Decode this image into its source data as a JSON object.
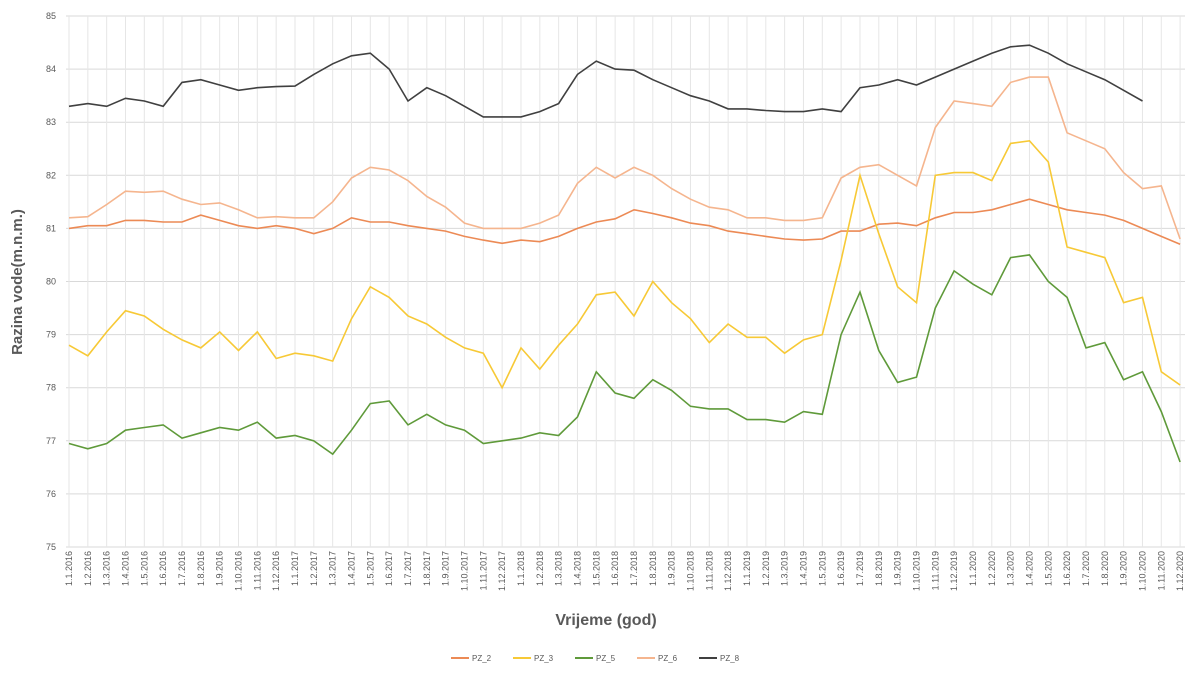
{
  "chart_data": {
    "type": "line",
    "y_label": "Razina vode(m.n.m.)",
    "x_label": "Vrijeme (god)",
    "categories": [
      "1.1.2016",
      "1.2.2016",
      "1.3.2016",
      "1.4.2016",
      "1.5.2016",
      "1.6.2016",
      "1.7.2016",
      "1.8.2016",
      "1.9.2016",
      "1.10.2016",
      "1.11.2016",
      "1.12.2016",
      "1.1.2017",
      "1.2.2017",
      "1.3.2017",
      "1.4.2017",
      "1.5.2017",
      "1.6.2017",
      "1.7.2017",
      "1.8.2017",
      "1.9.2017",
      "1.10.2017",
      "1.11.2017",
      "1.12.2017",
      "1.1.2018",
      "1.2.2018",
      "1.3.2018",
      "1.4.2018",
      "1.5.2018",
      "1.6.2018",
      "1.7.2018",
      "1.8.2018",
      "1.9.2018",
      "1.10.2018",
      "1.11.2018",
      "1.12.2018",
      "1.1.2019",
      "1.2.2019",
      "1.3.2019",
      "1.4.2019",
      "1.5.2019",
      "1.6.2019",
      "1.7.2019",
      "1.8.2019",
      "1.9.2019",
      "1.10.2019",
      "1.11.2019",
      "1.12.2019",
      "1.1.2020",
      "1.2.2020",
      "1.3.2020",
      "1.4.2020",
      "1.5.2020",
      "1.6.2020",
      "1.7.2020",
      "1.8.2020",
      "1.9.2020",
      "1.10.2020",
      "1.11.2020",
      "1.12.2020"
    ],
    "series": [
      {
        "name": "PZ_2",
        "color": "#ec8a55",
        "values": [
          81.0,
          81.05,
          81.05,
          81.15,
          81.15,
          81.12,
          81.12,
          81.25,
          81.15,
          81.05,
          81.0,
          81.05,
          81.0,
          80.9,
          81.0,
          81.2,
          81.12,
          81.12,
          81.05,
          81.0,
          80.95,
          80.85,
          80.78,
          80.72,
          80.78,
          80.75,
          80.85,
          81.0,
          81.12,
          81.18,
          81.35,
          81.28,
          81.2,
          81.1,
          81.05,
          80.95,
          80.9,
          80.85,
          80.8,
          80.78,
          80.8,
          80.95,
          80.95,
          81.08,
          81.1,
          81.05,
          81.2,
          81.3,
          81.3,
          81.35,
          81.45,
          81.55,
          81.45,
          81.35,
          81.3,
          81.25,
          81.15,
          81.0,
          80.85,
          80.7
        ]
      },
      {
        "name": "PZ_3",
        "color": "#f7c936",
        "values": [
          78.8,
          78.6,
          79.05,
          79.45,
          79.35,
          79.1,
          78.9,
          78.75,
          79.05,
          78.7,
          79.05,
          78.55,
          78.65,
          78.6,
          78.5,
          79.3,
          79.9,
          79.7,
          79.35,
          79.2,
          78.95,
          78.75,
          78.65,
          78.0,
          78.75,
          78.35,
          78.8,
          79.2,
          79.75,
          79.8,
          79.35,
          80.0,
          79.6,
          79.3,
          78.85,
          79.2,
          78.95,
          78.95,
          78.65,
          78.9,
          79.0,
          80.4,
          82.0,
          80.9,
          79.9,
          79.6,
          82.0,
          82.05,
          82.05,
          81.9,
          82.6,
          82.65,
          82.25,
          80.65,
          80.55,
          80.45,
          79.6,
          79.7,
          78.3,
          78.05
        ]
      },
      {
        "name": "PZ_5",
        "color": "#5f9a3a",
        "values": [
          76.95,
          76.85,
          76.95,
          77.2,
          77.25,
          77.3,
          77.05,
          77.15,
          77.25,
          77.2,
          77.35,
          77.05,
          77.1,
          77.0,
          76.75,
          77.2,
          77.7,
          77.75,
          77.3,
          77.5,
          77.3,
          77.2,
          76.95,
          77.0,
          77.05,
          77.15,
          77.1,
          77.45,
          78.3,
          77.9,
          77.8,
          78.15,
          77.95,
          77.65,
          77.6,
          77.6,
          77.4,
          77.4,
          77.35,
          77.55,
          77.5,
          79.0,
          79.8,
          78.7,
          78.1,
          78.2,
          79.5,
          80.2,
          79.95,
          79.75,
          80.45,
          80.5,
          80.0,
          79.7,
          78.75,
          78.85,
          78.15,
          78.3,
          77.55,
          76.6
        ]
      },
      {
        "name": "PZ_6",
        "color": "#f5b58e",
        "values": [
          81.2,
          81.22,
          81.45,
          81.7,
          81.68,
          81.7,
          81.55,
          81.45,
          81.48,
          81.35,
          81.2,
          81.22,
          81.2,
          81.2,
          81.5,
          81.95,
          82.15,
          82.1,
          81.9,
          81.6,
          81.4,
          81.1,
          81.0,
          81.0,
          81.0,
          81.1,
          81.25,
          81.85,
          82.15,
          81.95,
          82.15,
          82.0,
          81.75,
          81.55,
          81.4,
          81.35,
          81.2,
          81.2,
          81.15,
          81.15,
          81.2,
          81.95,
          82.15,
          82.2,
          82.0,
          81.8,
          82.9,
          83.4,
          83.35,
          83.3,
          83.75,
          83.85,
          83.85,
          82.8,
          82.65,
          82.5,
          82.05,
          81.75,
          81.8,
          80.8
        ]
      },
      {
        "name": "PZ_8",
        "color": "#404040",
        "values": [
          83.3,
          83.35,
          83.3,
          83.45,
          83.4,
          83.3,
          83.75,
          83.8,
          83.7,
          83.6,
          83.65,
          83.67,
          83.68,
          83.9,
          84.1,
          84.25,
          84.3,
          84.0,
          83.4,
          83.65,
          83.5,
          83.3,
          83.1,
          83.1,
          83.1,
          83.2,
          83.35,
          83.9,
          84.15,
          84.0,
          83.98,
          83.8,
          83.65,
          83.5,
          83.4,
          83.25,
          83.25,
          83.22,
          83.2,
          83.2,
          83.25,
          83.2,
          83.65,
          83.7,
          83.8,
          83.7,
          83.85,
          84.0,
          84.15,
          84.3,
          84.42,
          84.45,
          84.3,
          84.1,
          83.95,
          83.8,
          83.6,
          83.4,
          null,
          null
        ]
      }
    ],
    "ylim": [
      75,
      85
    ],
    "yticks": [
      75,
      76,
      77,
      78,
      79,
      80,
      81,
      82,
      83,
      84,
      85
    ],
    "grid": true
  }
}
